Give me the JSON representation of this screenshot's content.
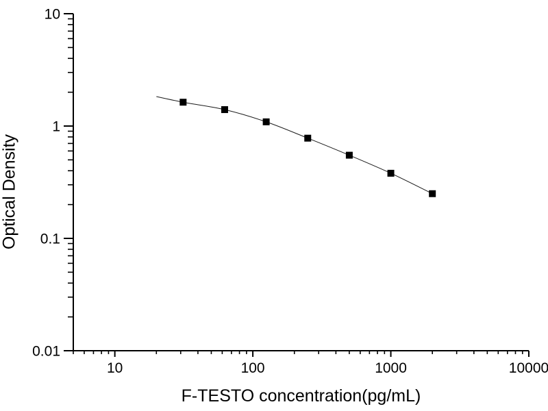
{
  "figure": {
    "background": "#ffffff"
  },
  "chart_data": {
    "type": "scatter",
    "title": "",
    "xlabel": "F-TESTO concentration(pg/mL)",
    "ylabel": "Optical Density",
    "x_scale": "log",
    "y_scale": "log",
    "xlim": [
      5,
      10000
    ],
    "ylim": [
      0.01,
      10
    ],
    "x_major_ticks": [
      "10",
      "100",
      "1000",
      "10000"
    ],
    "y_major_ticks": [
      "0.01",
      "0.1",
      "1",
      "10"
    ],
    "minor_ticks": true,
    "grid": false,
    "legend_position": "none",
    "marker": "filled-square",
    "colors": {
      "axis": "#000000",
      "text": "#000000",
      "marker": "#000000",
      "curve": "#1a1a1a"
    },
    "series": [
      {
        "name": "standard-curve-points",
        "x": [
          31.25,
          62.5,
          125,
          250,
          500,
          1000,
          2000
        ],
        "y": [
          1.63,
          1.4,
          1.09,
          0.78,
          0.55,
          0.38,
          0.25
        ]
      }
    ],
    "fit_curve_extension_start": {
      "x": 20,
      "y": 1.83
    }
  }
}
